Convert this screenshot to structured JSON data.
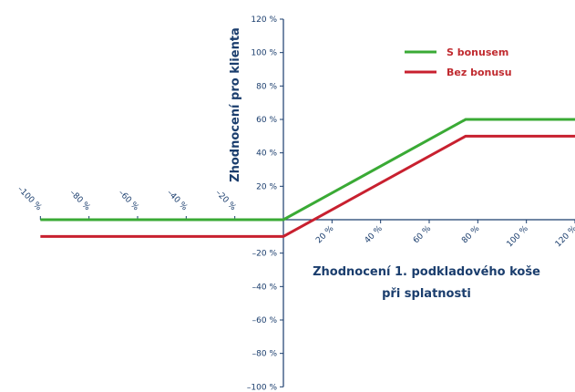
{
  "chart_data": {
    "type": "line",
    "title": "",
    "xlabel_line1": "Zhodnocení 1. podkladového koše",
    "xlabel_line2": "při splatnosti",
    "ylabel": "Zhodnocení pro klienta",
    "xlim": [
      -100,
      120
    ],
    "ylim": [
      -100,
      120
    ],
    "x_ticks": [
      -100,
      -80,
      -60,
      -40,
      -20,
      20,
      40,
      60,
      80,
      100,
      120
    ],
    "x_tick_labels": [
      "–100 %",
      "–80 %",
      "–60 %",
      "–40 %",
      "–20 %",
      "20 %",
      "40 %",
      "60 %",
      "80 %",
      "100 %",
      "120 %"
    ],
    "y_ticks": [
      120,
      100,
      80,
      60,
      40,
      20,
      -20,
      -40,
      -60,
      -80,
      -100
    ],
    "y_tick_labels": [
      "120 %",
      "100 %",
      "80 %",
      "60 %",
      "40 %",
      "20 %",
      "–20 %",
      "–40 %",
      "–60 %",
      "–80 %",
      "–100 %"
    ],
    "grid": false,
    "legend_position": "top-right",
    "series": [
      {
        "name": "S bonusem",
        "color": "#3aaa35",
        "points": [
          [
            -100,
            0
          ],
          [
            0,
            0
          ],
          [
            75,
            60
          ],
          [
            120,
            60
          ]
        ]
      },
      {
        "name": "Bez bonusu",
        "color": "#c8202f",
        "points": [
          [
            -100,
            -10
          ],
          [
            0,
            -10
          ],
          [
            75,
            50
          ],
          [
            120,
            50
          ]
        ]
      }
    ]
  }
}
